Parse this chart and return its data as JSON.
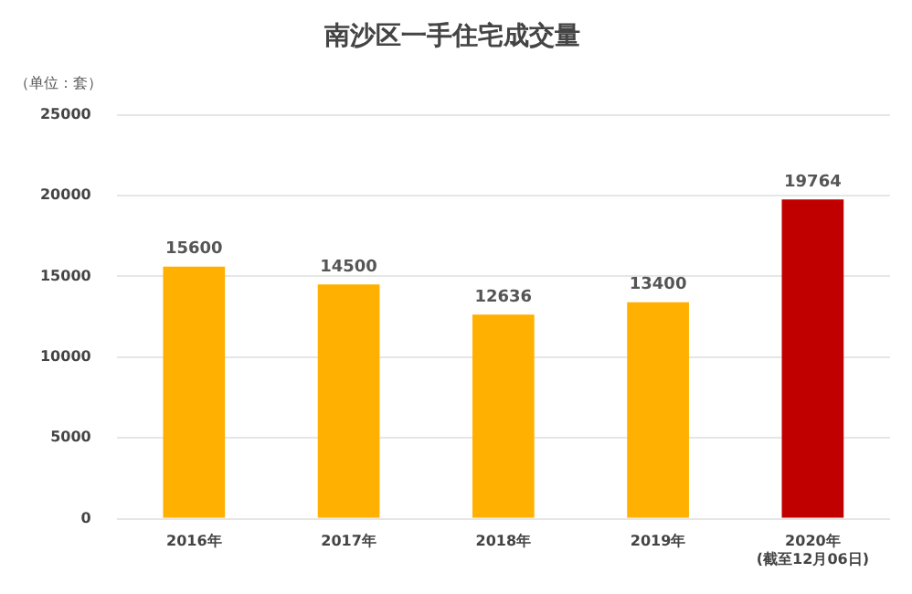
{
  "chart_data": {
    "type": "bar",
    "title": "南沙区一手住宅成交量",
    "ylabel": "（单位：套）",
    "categories": [
      "2016年",
      "2017年",
      "2018年",
      "2019年",
      "2020年\n(截至12月06日)"
    ],
    "values": [
      15600,
      14500,
      12636,
      13400,
      19764
    ],
    "colors": [
      "#ffb000",
      "#ffb000",
      "#ffb000",
      "#ffb000",
      "#c00000"
    ],
    "ylim": [
      0,
      25000
    ],
    "yticks": [
      0,
      5000,
      10000,
      15000,
      20000,
      25000
    ],
    "grid": "y",
    "data_labels": true,
    "legend": false
  }
}
